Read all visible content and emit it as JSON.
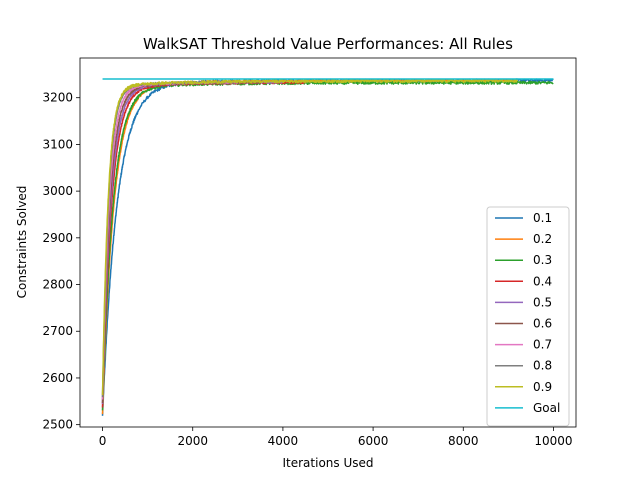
{
  "chart_data": {
    "type": "line",
    "title": "WalkSAT Threshold Value Performances: All Rules",
    "xlabel": "Iterations Used",
    "ylabel": "Constraints Solved",
    "xlim": [
      -500,
      10500
    ],
    "ylim": [
      2495,
      3285
    ],
    "xticks": [
      0,
      2000,
      4000,
      6000,
      8000,
      10000
    ],
    "yticks": [
      2500,
      2600,
      2700,
      2800,
      2900,
      3000,
      3100,
      3200
    ],
    "xtick_labels": [
      "0",
      "2000",
      "4000",
      "6000",
      "8000",
      "10000"
    ],
    "ytick_labels": [
      "2500",
      "2600",
      "2700",
      "2800",
      "2900",
      "3000",
      "3100",
      "3200"
    ],
    "grid": false,
    "legend_position": "lower-right",
    "series": [
      {
        "name": "0.1",
        "color": "#1f77b4",
        "start": 2530,
        "plateau": 3237,
        "rise": 380,
        "noise": 3,
        "end_x": 10000
      },
      {
        "name": "0.2",
        "color": "#ff7f0e",
        "start": 2535,
        "plateau": 3236,
        "rise": 300,
        "noise": 2.5,
        "end_x": 9000
      },
      {
        "name": "0.3",
        "color": "#2ca02c",
        "start": 2545,
        "plateau": 3232,
        "rise": 280,
        "noise": 3,
        "end_x": 10000
      },
      {
        "name": "0.4",
        "color": "#d62728",
        "start": 2550,
        "plateau": 3233,
        "rise": 240,
        "noise": 2,
        "end_x": 4500
      },
      {
        "name": "0.5",
        "color": "#9467bd",
        "start": 2555,
        "plateau": 3234,
        "rise": 220,
        "noise": 2,
        "end_x": 4000
      },
      {
        "name": "0.6",
        "color": "#8c564b",
        "start": 2560,
        "plateau": 3234,
        "rise": 200,
        "noise": 2,
        "end_x": 3500
      },
      {
        "name": "0.7",
        "color": "#e377c2",
        "start": 2565,
        "plateau": 3235,
        "rise": 180,
        "noise": 2,
        "end_x": 3000
      },
      {
        "name": "0.8",
        "color": "#7f7f7f",
        "start": 2570,
        "plateau": 3236,
        "rise": 160,
        "noise": 2,
        "end_x": 3000
      },
      {
        "name": "0.9",
        "color": "#bcbd22",
        "start": 2575,
        "plateau": 3236,
        "rise": 150,
        "noise": 3,
        "end_x": 9200
      }
    ],
    "goal": {
      "name": "Goal",
      "color": "#17becf",
      "value": 3240,
      "x_start": 0,
      "x_end": 10000
    }
  }
}
